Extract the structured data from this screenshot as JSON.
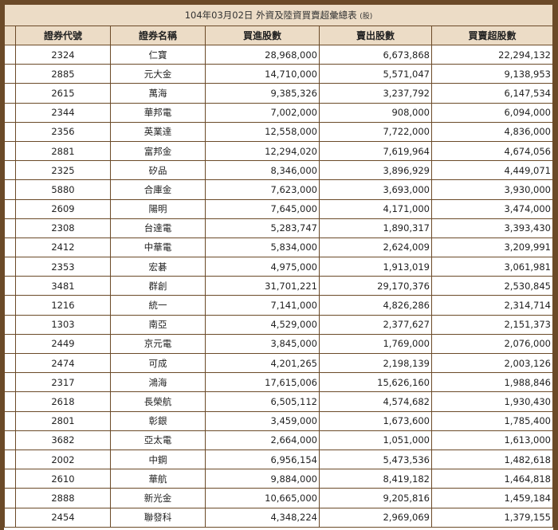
{
  "title": {
    "text": "104年03月02日 外資及陸資買賣超彙總表",
    "unit": "(股)"
  },
  "headers": [
    "證券代號",
    "證券名稱",
    "買進股數",
    "賣出股數",
    "買賣超股數"
  ],
  "rows": [
    [
      "2324",
      "仁寶",
      "28,968,000",
      "6,673,868",
      "22,294,132"
    ],
    [
      "2885",
      "元大金",
      "14,710,000",
      "5,571,047",
      "9,138,953"
    ],
    [
      "2615",
      "萬海",
      "9,385,326",
      "3,237,792",
      "6,147,534"
    ],
    [
      "2344",
      "華邦電",
      "7,002,000",
      "908,000",
      "6,094,000"
    ],
    [
      "2356",
      "英業達",
      "12,558,000",
      "7,722,000",
      "4,836,000"
    ],
    [
      "2881",
      "富邦金",
      "12,294,020",
      "7,619,964",
      "4,674,056"
    ],
    [
      "2325",
      "矽品",
      "8,346,000",
      "3,896,929",
      "4,449,071"
    ],
    [
      "5880",
      "合庫金",
      "7,623,000",
      "3,693,000",
      "3,930,000"
    ],
    [
      "2609",
      "陽明",
      "7,645,000",
      "4,171,000",
      "3,474,000"
    ],
    [
      "2308",
      "台達電",
      "5,283,747",
      "1,890,317",
      "3,393,430"
    ],
    [
      "2412",
      "中華電",
      "5,834,000",
      "2,624,009",
      "3,209,991"
    ],
    [
      "2353",
      "宏碁",
      "4,975,000",
      "1,913,019",
      "3,061,981"
    ],
    [
      "3481",
      "群創",
      "31,701,221",
      "29,170,376",
      "2,530,845"
    ],
    [
      "1216",
      "統一",
      "7,141,000",
      "4,826,286",
      "2,314,714"
    ],
    [
      "1303",
      "南亞",
      "4,529,000",
      "2,377,627",
      "2,151,373"
    ],
    [
      "2449",
      "京元電",
      "3,845,000",
      "1,769,000",
      "2,076,000"
    ],
    [
      "2474",
      "可成",
      "4,201,265",
      "2,198,139",
      "2,003,126"
    ],
    [
      "2317",
      "鴻海",
      "17,615,006",
      "15,626,160",
      "1,988,846"
    ],
    [
      "2618",
      "長榮航",
      "6,505,112",
      "4,574,682",
      "1,930,430"
    ],
    [
      "2801",
      "彰銀",
      "3,459,000",
      "1,673,600",
      "1,785,400"
    ],
    [
      "3682",
      "亞太電",
      "2,664,000",
      "1,051,000",
      "1,613,000"
    ],
    [
      "2002",
      "中鋼",
      "6,956,154",
      "5,473,536",
      "1,482,618"
    ],
    [
      "2610",
      "華航",
      "9,884,000",
      "8,419,182",
      "1,464,818"
    ],
    [
      "2888",
      "新光金",
      "10,665,000",
      "9,205,816",
      "1,459,184"
    ],
    [
      "2454",
      "聯發科",
      "4,348,224",
      "2,969,069",
      "1,379,155"
    ]
  ]
}
